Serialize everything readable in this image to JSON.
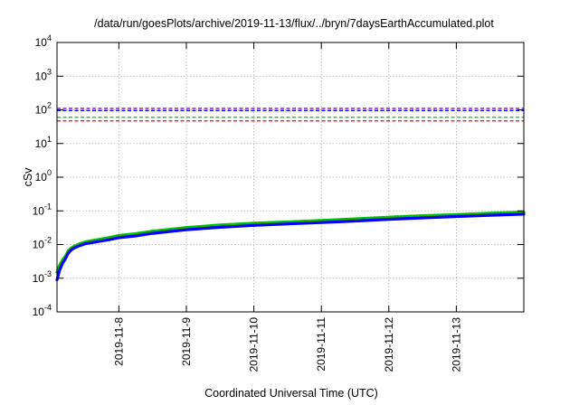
{
  "chart_data": {
    "type": "line",
    "title": "/data/run/goesPlots/archive/2019-11-13/flux/../bryn/7daysEarthAccumulated.plot",
    "xlabel": "Coordinated Universal Time (UTC)",
    "ylabel": "cSv",
    "yscale": "log",
    "ylim": [
      0.0001,
      10000
    ],
    "xlim": [
      "2019-11-07T02:00",
      "2019-11-14T00:00"
    ],
    "grid": true,
    "y_ticks": [
      {
        "value": 0.0001,
        "base": "10",
        "exp": "-4"
      },
      {
        "value": 0.001,
        "base": "10",
        "exp": "-3"
      },
      {
        "value": 0.01,
        "base": "10",
        "exp": "-2"
      },
      {
        "value": 0.1,
        "base": "10",
        "exp": "-1"
      },
      {
        "value": 1,
        "base": "10",
        "exp": "0"
      },
      {
        "value": 10,
        "base": "10",
        "exp": "1"
      },
      {
        "value": 100,
        "base": "10",
        "exp": "2"
      },
      {
        "value": 1000,
        "base": "10",
        "exp": "3"
      },
      {
        "value": 10000,
        "base": "10",
        "exp": "4"
      }
    ],
    "x_ticks": [
      {
        "value": "2019-11-08T00:00",
        "label": "2019-11-8"
      },
      {
        "value": "2019-11-09T00:00",
        "label": "2019-11-9"
      },
      {
        "value": "2019-11-10T00:00",
        "label": "2019-11-10"
      },
      {
        "value": "2019-11-11T00:00",
        "label": "2019-11-11"
      },
      {
        "value": "2019-11-12T00:00",
        "label": "2019-11-12"
      },
      {
        "value": "2019-11-13T00:00",
        "label": "2019-11-13"
      }
    ],
    "thresholds": [
      {
        "value": 110,
        "color": "#9400d3"
      },
      {
        "value": 95,
        "color": "#0000ff"
      },
      {
        "value": 60,
        "color": "#00c000"
      },
      {
        "value": 47,
        "color": "#ff0000"
      }
    ],
    "series": [
      {
        "color": "#00c000",
        "x": [
          "2019-11-07T02:00",
          "2019-11-07T03:00",
          "2019-11-07T04:00",
          "2019-11-07T05:00",
          "2019-11-07T06:00",
          "2019-11-07T07:00",
          "2019-11-07T08:00",
          "2019-11-07T10:00",
          "2019-11-07T12:00",
          "2019-11-07T16:00",
          "2019-11-07T20:00",
          "2019-11-08T00:00",
          "2019-11-08T06:00",
          "2019-11-08T12:00",
          "2019-11-09T00:00",
          "2019-11-09T12:00",
          "2019-11-10T00:00",
          "2019-11-10T12:00",
          "2019-11-11T00:00",
          "2019-11-11T12:00",
          "2019-11-12T00:00",
          "2019-11-12T12:00",
          "2019-11-13T00:00",
          "2019-11-13T12:00",
          "2019-11-14T00:00"
        ],
        "values": [
          0.0015,
          0.0025,
          0.0035,
          0.0045,
          0.0065,
          0.0078,
          0.0088,
          0.0105,
          0.012,
          0.0138,
          0.0158,
          0.0185,
          0.021,
          0.025,
          0.032,
          0.038,
          0.043,
          0.047,
          0.052,
          0.058,
          0.065,
          0.072,
          0.078,
          0.085,
          0.092
        ]
      },
      {
        "color": "#0000ff",
        "x": [
          "2019-11-07T02:00",
          "2019-11-07T03:00",
          "2019-11-07T04:00",
          "2019-11-07T05:00",
          "2019-11-07T06:00",
          "2019-11-07T07:00",
          "2019-11-07T08:00",
          "2019-11-07T10:00",
          "2019-11-07T12:00",
          "2019-11-07T16:00",
          "2019-11-07T20:00",
          "2019-11-08T00:00",
          "2019-11-08T06:00",
          "2019-11-08T12:00",
          "2019-11-09T00:00",
          "2019-11-09T12:00",
          "2019-11-10T00:00",
          "2019-11-10T12:00",
          "2019-11-11T00:00",
          "2019-11-11T12:00",
          "2019-11-12T00:00",
          "2019-11-12T12:00",
          "2019-11-13T00:00",
          "2019-11-13T12:00",
          "2019-11-14T00:00"
        ],
        "values": [
          0.0009,
          0.0018,
          0.0028,
          0.0038,
          0.0055,
          0.0068,
          0.0078,
          0.0092,
          0.0105,
          0.012,
          0.0137,
          0.016,
          0.018,
          0.0215,
          0.0275,
          0.0325,
          0.037,
          0.041,
          0.045,
          0.05,
          0.056,
          0.062,
          0.068,
          0.074,
          0.08
        ]
      }
    ]
  }
}
